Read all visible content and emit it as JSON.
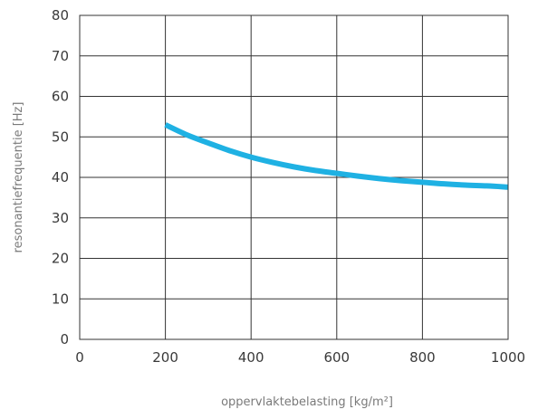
{
  "chart_data": {
    "type": "line",
    "title": "",
    "xlabel": "oppervlaktebelasting [kg/m²]",
    "ylabel": "resonantiefrequentie [Hz]",
    "xlim": [
      0,
      1000
    ],
    "ylim": [
      0,
      80
    ],
    "x_ticks": [
      0,
      200,
      400,
      600,
      800,
      1000
    ],
    "y_ticks": [
      0,
      10,
      20,
      30,
      40,
      50,
      60,
      70,
      80
    ],
    "x_tick_labels": [
      "0",
      "200",
      "400",
      "600",
      "800",
      "1000"
    ],
    "y_tick_labels": [
      "0",
      "10",
      "20",
      "30",
      "40",
      "50",
      "60",
      "70",
      "80"
    ],
    "grid": true,
    "legend": "none",
    "series": [
      {
        "color": "#1fb1e3",
        "x": [
          200,
          250,
          300,
          350,
          400,
          450,
          500,
          550,
          600,
          650,
          700,
          750,
          800,
          850,
          900,
          950,
          1000
        ],
        "y": [
          53,
          50.5,
          48.5,
          46.6,
          45.0,
          43.7,
          42.6,
          41.7,
          41.0,
          40.3,
          39.7,
          39.2,
          38.8,
          38.4,
          38.1,
          37.9,
          37.6
        ]
      }
    ]
  }
}
